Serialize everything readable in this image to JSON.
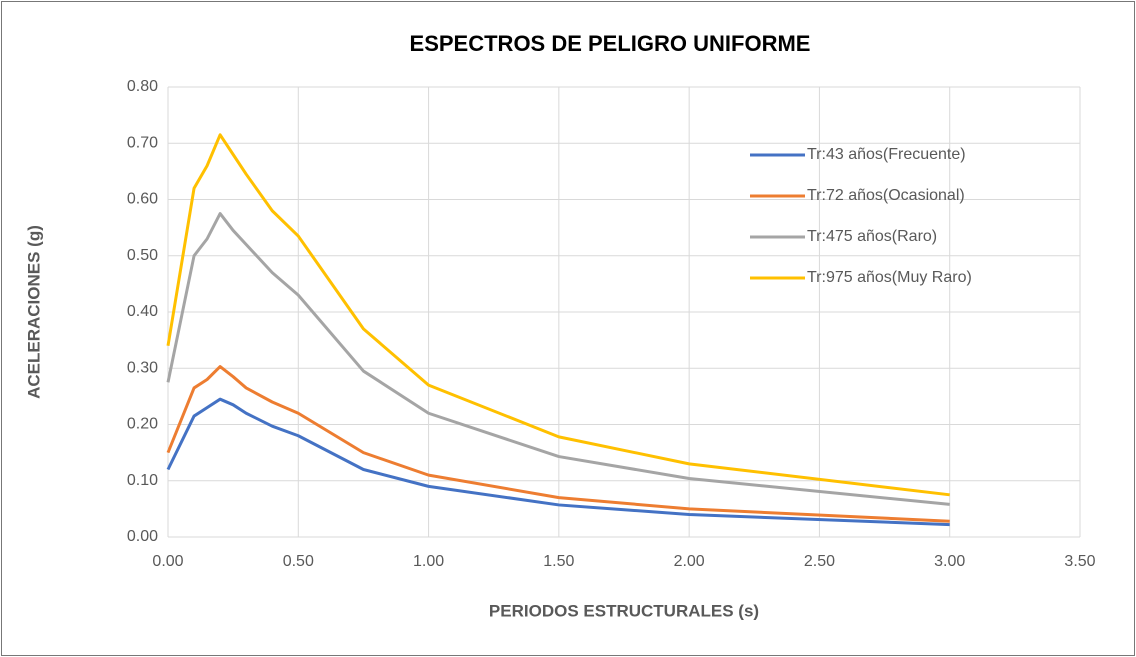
{
  "chart_data": {
    "type": "line",
    "title": "ESPECTROS DE PELIGRO UNIFORME",
    "xlabel": "PERIODOS ESTRUCTURALES (s)",
    "ylabel": "ACELERACIONES (g)",
    "x": [
      0,
      0.1,
      0.15,
      0.2,
      0.25,
      0.3,
      0.4,
      0.5,
      0.75,
      1,
      1.5,
      2,
      3
    ],
    "series": [
      {
        "name": "Tr:43 años(Frecuente)",
        "color": "#4472c4",
        "values": [
          0.12,
          0.215,
          0.23,
          0.245,
          0.235,
          0.22,
          0.197,
          0.18,
          0.12,
          0.09,
          0.057,
          0.04,
          0.022
        ]
      },
      {
        "name": "Tr:72 años(Ocasional)",
        "color": "#ed7d31",
        "values": [
          0.15,
          0.265,
          0.28,
          0.303,
          0.285,
          0.265,
          0.24,
          0.22,
          0.15,
          0.11,
          0.07,
          0.05,
          0.028
        ]
      },
      {
        "name": "Tr:475 años(Raro)",
        "color": "#a5a5a5",
        "values": [
          0.275,
          0.5,
          0.53,
          0.575,
          0.545,
          0.52,
          0.47,
          0.43,
          0.295,
          0.22,
          0.143,
          0.104,
          0.058
        ]
      },
      {
        "name": "Tr:975 años(Muy Raro)",
        "color": "#ffc000",
        "values": [
          0.34,
          0.62,
          0.66,
          0.715,
          0.68,
          0.645,
          0.58,
          0.535,
          0.37,
          0.27,
          0.178,
          0.13,
          0.075
        ]
      }
    ],
    "xlim": [
      0,
      3.5
    ],
    "xticks": [
      {
        "value": 0,
        "label": "0.00"
      },
      {
        "value": 0.5,
        "label": "0.50"
      },
      {
        "value": 1,
        "label": "1.00"
      },
      {
        "value": 1.5,
        "label": "1.50"
      },
      {
        "value": 2,
        "label": "2.00"
      },
      {
        "value": 2.5,
        "label": "2.50"
      },
      {
        "value": 3,
        "label": "3.00"
      },
      {
        "value": 3.5,
        "label": "3.50"
      }
    ],
    "ylim": [
      0,
      0.8
    ],
    "yticks": [
      {
        "value": 0,
        "label": "0.00"
      },
      {
        "value": 0.1,
        "label": "0.10"
      },
      {
        "value": 0.2,
        "label": "0.20"
      },
      {
        "value": 0.3,
        "label": "0.30"
      },
      {
        "value": 0.4,
        "label": "0.40"
      },
      {
        "value": 0.5,
        "label": "0.50"
      },
      {
        "value": 0.6,
        "label": "0.60"
      },
      {
        "value": 0.7,
        "label": "0.70"
      },
      {
        "value": 0.8,
        "label": "0.80"
      }
    ],
    "grid": true,
    "legend": "upper right"
  }
}
